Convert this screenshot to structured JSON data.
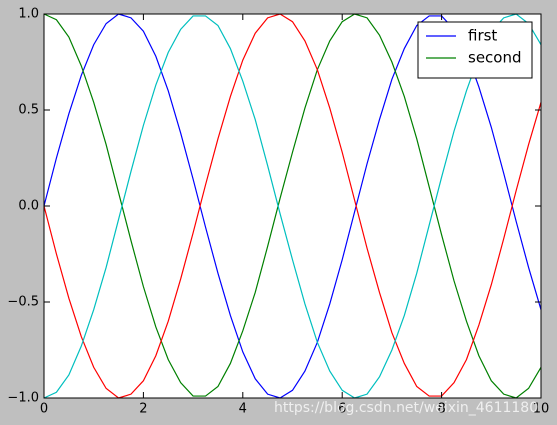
{
  "chart_data": {
    "type": "line",
    "x": [
      0,
      0.25,
      0.5,
      0.75,
      1,
      1.25,
      1.5,
      1.75,
      2,
      2.25,
      2.5,
      2.75,
      3,
      3.25,
      3.5,
      3.75,
      4,
      4.25,
      4.5,
      4.75,
      5,
      5.25,
      5.5,
      5.75,
      6,
      6.25,
      6.5,
      6.75,
      7,
      7.25,
      7.5,
      7.75,
      8,
      8.25,
      8.5,
      8.75,
      9,
      9.25,
      9.5,
      9.75,
      10
    ],
    "series": [
      {
        "name": "first",
        "color": "#0000ff",
        "values": [
          0,
          0.25,
          0.48,
          0.68,
          0.84,
          0.95,
          1.0,
          0.98,
          0.91,
          0.78,
          0.6,
          0.38,
          0.14,
          -0.11,
          -0.35,
          -0.57,
          -0.76,
          -0.9,
          -0.98,
          -1.0,
          -0.96,
          -0.86,
          -0.71,
          -0.51,
          -0.28,
          -0.03,
          0.22,
          0.45,
          0.66,
          0.82,
          0.94,
          0.99,
          0.99,
          0.92,
          0.8,
          0.62,
          0.41,
          0.17,
          -0.08,
          -0.32,
          -0.54
        ]
      },
      {
        "name": "second",
        "color": "#008000",
        "values": [
          1.0,
          0.97,
          0.88,
          0.73,
          0.54,
          0.32,
          0.07,
          -0.18,
          -0.42,
          -0.63,
          -0.8,
          -0.92,
          -0.99,
          -0.99,
          -0.94,
          -0.82,
          -0.65,
          -0.45,
          -0.21,
          0.04,
          0.28,
          0.51,
          0.71,
          0.86,
          0.96,
          1.0,
          0.98,
          0.89,
          0.75,
          0.57,
          0.35,
          0.1,
          -0.15,
          -0.39,
          -0.6,
          -0.78,
          -0.91,
          -0.98,
          -1.0,
          -0.95,
          -0.84
        ]
      },
      {
        "color": "#ff0000",
        "values": [
          0,
          -0.25,
          -0.48,
          -0.68,
          -0.84,
          -0.95,
          -1.0,
          -0.98,
          -0.91,
          -0.78,
          -0.6,
          -0.38,
          -0.14,
          0.11,
          0.35,
          0.57,
          0.76,
          0.9,
          0.98,
          1.0,
          0.96,
          0.86,
          0.71,
          0.51,
          0.28,
          0.03,
          -0.22,
          -0.45,
          -0.66,
          -0.82,
          -0.94,
          -0.99,
          -0.99,
          -0.92,
          -0.8,
          -0.62,
          -0.41,
          -0.17,
          0.08,
          0.32,
          0.54
        ]
      },
      {
        "color": "#00bfbf",
        "values": [
          -1.0,
          -0.97,
          -0.88,
          -0.73,
          -0.54,
          -0.32,
          -0.07,
          0.18,
          0.42,
          0.63,
          0.8,
          0.92,
          0.99,
          0.99,
          0.94,
          0.82,
          0.65,
          0.45,
          0.21,
          -0.04,
          -0.28,
          -0.51,
          -0.71,
          -0.86,
          -0.96,
          -1.0,
          -0.98,
          -0.89,
          -0.75,
          -0.57,
          -0.35,
          -0.1,
          0.15,
          0.39,
          0.6,
          0.78,
          0.91,
          0.98,
          1.0,
          0.95,
          0.84
        ]
      }
    ],
    "xlim": [
      0,
      10
    ],
    "xticks": [
      0,
      2,
      4,
      6,
      8,
      10
    ],
    "ylim": [
      -1,
      1
    ],
    "yticks": [
      {
        "value": -1,
        "label": "−1.0"
      },
      {
        "value": -0.5,
        "label": "−0.5"
      },
      {
        "value": 0,
        "label": "0.0"
      },
      {
        "value": 0.5,
        "label": "0.5"
      },
      {
        "value": 1,
        "label": "1.0"
      }
    ],
    "legend": "upper right",
    "watermark": "https://blog.csdn.net/weixin_4611180"
  }
}
